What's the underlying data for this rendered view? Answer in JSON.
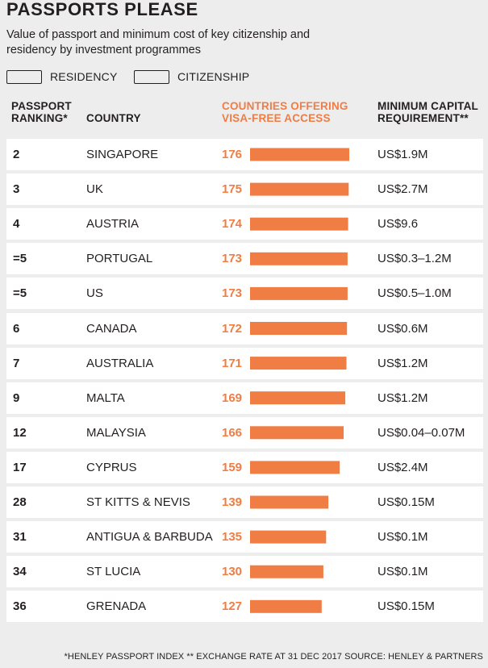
{
  "title": "PASSPORTS PLEASE",
  "subtitle": "Value of passport and minimum cost of key citizenship and residency by investment programmes",
  "legend": {
    "residency": "RESIDENCY",
    "citizenship": "CITIZENSHIP"
  },
  "headers": {
    "rank": [
      "PASSPORT",
      "RANKING*"
    ],
    "country": "COUNTRY",
    "visa": [
      "COUNTRIES OFFERING",
      "VISA-FREE ACCESS"
    ],
    "capital": [
      "MINIMUM CAPITAL",
      "REQUIREMENT**"
    ]
  },
  "colors": {
    "accent": "#ef7d44",
    "row_background": "#ffffff",
    "page_background": "#ededed",
    "text": "#231f20"
  },
  "footnote": "*HENLEY PASSPORT INDEX   ** EXCHANGE RATE AT 31 DEC 2017   SOURCE: HENLEY & PARTNERS",
  "chart_data": {
    "type": "bar",
    "orientation": "horizontal",
    "categories": [
      "SINGAPORE",
      "UK",
      "AUSTRIA",
      "PORTUGAL",
      "US",
      "CANADA",
      "AUSTRALIA",
      "MALTA",
      "MALAYSIA",
      "CYPRUS",
      "ST KITTS & NEVIS",
      "ANTIGUA & BARBUDA",
      "ST LUCIA",
      "GRENADA"
    ],
    "ranks": [
      "2",
      "3",
      "4",
      "=5",
      "=5",
      "6",
      "7",
      "9",
      "12",
      "17",
      "28",
      "31",
      "34",
      "36"
    ],
    "values": [
      176,
      175,
      174,
      173,
      173,
      172,
      171,
      169,
      166,
      159,
      139,
      135,
      130,
      127
    ],
    "min_capital": [
      "US$1.9M",
      "US$2.7M",
      "US$9.6",
      "US$0.3–1.2M",
      "US$0.5–1.0M",
      "US$0.6M",
      "US$1.2M",
      "US$1.2M",
      "US$0.04–0.07M",
      "US$2.4M",
      "US$0.15M",
      "US$0.1M",
      "US$0.1M",
      "US$0.15M"
    ],
    "xlim": [
      0,
      176
    ],
    "grid": false,
    "data_labels": true
  }
}
